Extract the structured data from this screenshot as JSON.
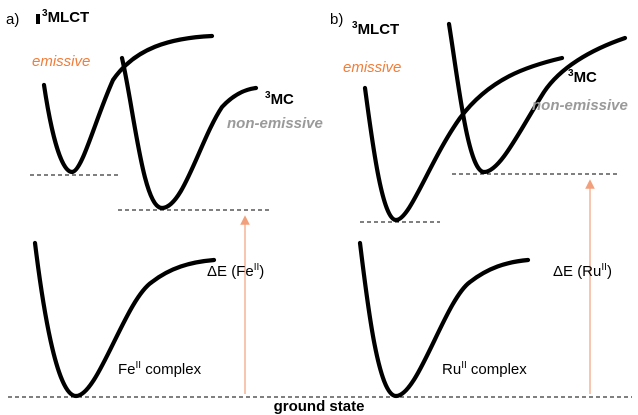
{
  "panel_a": {
    "label": "a)",
    "mlct": {
      "sup": "3",
      "text": "MLCT"
    },
    "mc": {
      "sup": "3",
      "text": "MC"
    },
    "emissive": "emissive",
    "non_emissive": "non-emissive",
    "delta": {
      "prefix": "ΔE (Fe",
      "sup": "II",
      "suffix": ")"
    },
    "complex": {
      "prefix": "Fe",
      "sup": "II",
      "suffix": " complex"
    }
  },
  "panel_b": {
    "label": "b)",
    "mlct": {
      "sup": "3",
      "text": "MLCT"
    },
    "mc": {
      "sup": "3",
      "text": "MC"
    },
    "emissive": "emissive",
    "non_emissive": "non-emissive",
    "delta": {
      "prefix": "ΔE (Ru",
      "sup": "II",
      "suffix": ")"
    },
    "complex": {
      "prefix": "Ru",
      "sup": "II",
      "suffix": " complex"
    }
  },
  "ground_state": "ground state",
  "colors": {
    "arrow": "#f2a07b",
    "emissive": "#f07d3a",
    "non_emissive": "#9a9a9a"
  }
}
